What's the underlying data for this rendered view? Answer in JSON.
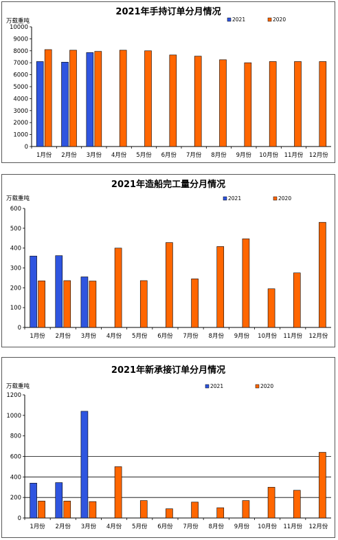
{
  "colors": {
    "s2021": "#2f55e0",
    "s2020": "#ff6600",
    "edge": "#000000"
  },
  "chart_data": [
    {
      "type": "bar",
      "title": "2021年手持订单分月情况",
      "ylabel": "万载重吨",
      "ylim": [
        0,
        10000
      ],
      "yticks": [
        "0",
        "1000",
        "2000",
        "3000",
        "4000",
        "5000",
        "6000",
        "7000",
        "8000",
        "9000",
        "10000"
      ],
      "categories": [
        "1月份",
        "2月份",
        "3月份",
        "4月份",
        "5月份",
        "6月份",
        "7月份",
        "8月份",
        "9月份",
        "10月份",
        "11月份",
        "12月份"
      ],
      "series": [
        {
          "name": "2021",
          "values": [
            7100,
            7050,
            7850,
            null,
            null,
            null,
            null,
            null,
            null,
            null,
            null,
            null
          ]
        },
        {
          "name": "2020",
          "values": [
            8100,
            8050,
            7950,
            8050,
            8000,
            7650,
            7550,
            7250,
            7000,
            7100,
            7100,
            7100
          ]
        }
      ],
      "grid": false,
      "legend": "top-right"
    },
    {
      "type": "bar",
      "title": "2021年造船完工量分月情况",
      "ylabel": "万载重吨",
      "ylim": [
        0,
        600
      ],
      "yticks": [
        "0",
        "100",
        "200",
        "300",
        "400",
        "500",
        "600"
      ],
      "categories": [
        "1月份",
        "2月份",
        "3月份",
        "4月份",
        "5月份",
        "6月份",
        "7月份",
        "8月份",
        "9月份",
        "10月份",
        "11月份",
        "12月份"
      ],
      "series": [
        {
          "name": "2021",
          "values": [
            360,
            362,
            255,
            null,
            null,
            null,
            null,
            null,
            null,
            null,
            null,
            null
          ]
        },
        {
          "name": "2020",
          "values": [
            235,
            236,
            234,
            400,
            236,
            428,
            245,
            408,
            447,
            195,
            275,
            530
          ]
        }
      ],
      "grid": false,
      "legend": "top-right"
    },
    {
      "type": "bar",
      "title": "2021年新承接订单分月情况",
      "ylabel": "万载重吨",
      "ylim": [
        0,
        1200
      ],
      "yticks": [
        "0",
        "200",
        "400",
        "600",
        "800",
        "1000",
        "1200"
      ],
      "gridlines": [
        200,
        400,
        600
      ],
      "categories": [
        "1月份",
        "2月份",
        "3月份",
        "4月份",
        "5月份",
        "6月份",
        "7月份",
        "8月份",
        "9月份",
        "10月份",
        "11月份",
        "12月份"
      ],
      "series": [
        {
          "name": "2021",
          "values": [
            340,
            345,
            1040,
            null,
            null,
            null,
            null,
            null,
            null,
            null,
            null,
            null
          ]
        },
        {
          "name": "2020",
          "values": [
            165,
            165,
            160,
            500,
            170,
            90,
            155,
            100,
            170,
            300,
            270,
            640
          ]
        }
      ],
      "grid": true,
      "legend": "top-right"
    }
  ]
}
